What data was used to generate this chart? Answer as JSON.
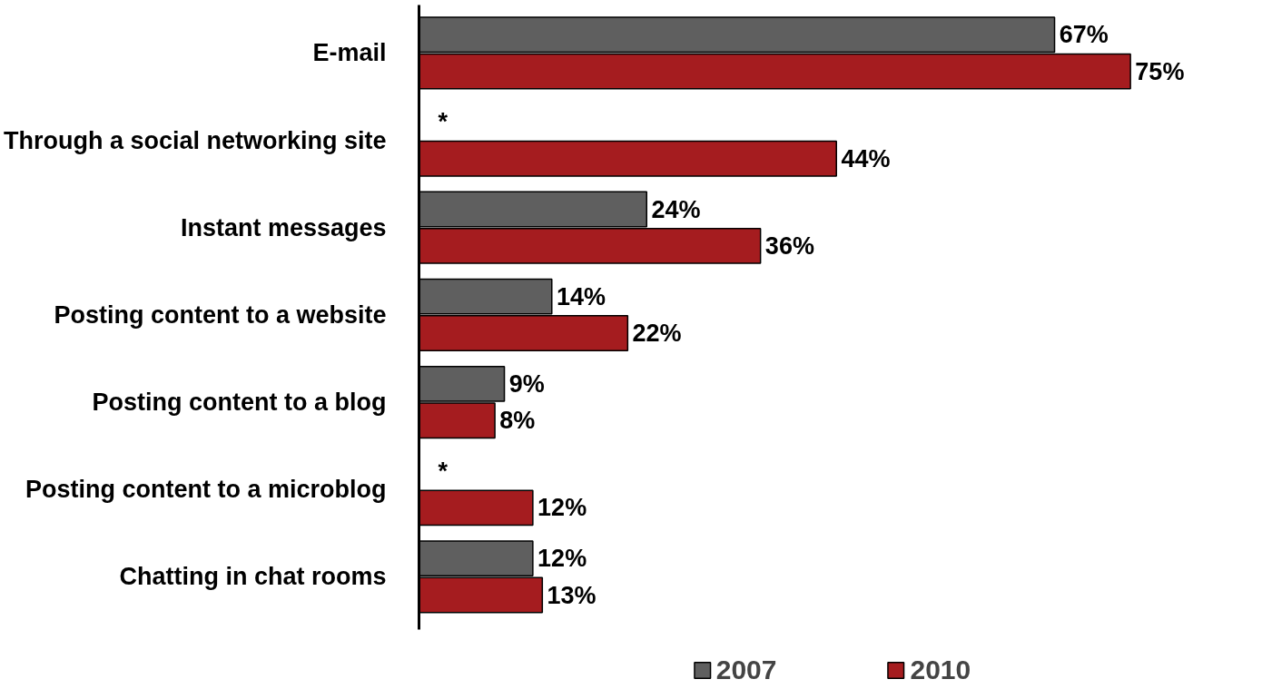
{
  "chart_data": {
    "type": "bar",
    "orientation": "horizontal",
    "categories": [
      "E-mail",
      "Through a social networking site",
      "Instant messages",
      "Posting content to a website",
      "Posting content to a blog",
      "Posting content to a microblog",
      "Chatting in chat rooms"
    ],
    "series": [
      {
        "name": "2007",
        "color": "#5f5f5f",
        "values": [
          67,
          null,
          24,
          14,
          9,
          null,
          12
        ],
        "value_labels": [
          "67%",
          "*",
          "24%",
          "14%",
          "9%",
          "*",
          "12%"
        ]
      },
      {
        "name": "2010",
        "color": "#a51c1f",
        "values": [
          75,
          44,
          36,
          22,
          8,
          12,
          13
        ],
        "value_labels": [
          "75%",
          "44%",
          "36%",
          "22%",
          "8%",
          "12%",
          "13%"
        ]
      }
    ],
    "tick_labels": "y",
    "grid": false,
    "legend": "bottom"
  }
}
